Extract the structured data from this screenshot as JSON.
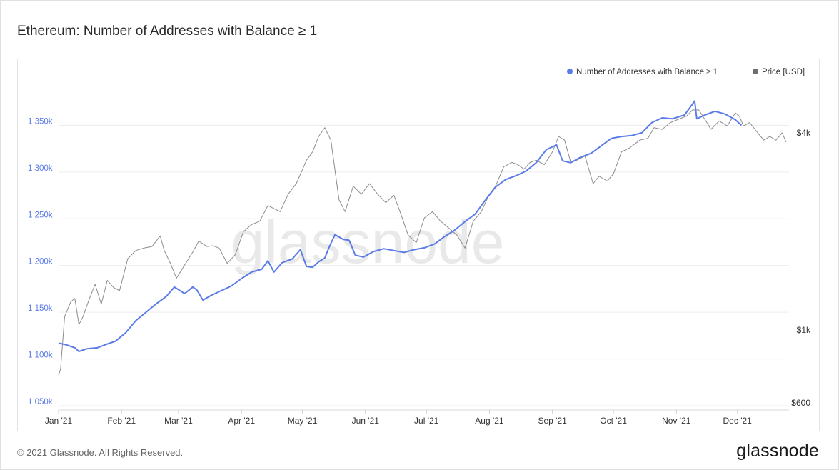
{
  "title": "Ethereum: Number of Addresses with Balance ≥ 1",
  "footer": "© 2021 Glassnode. All Rights Reserved.",
  "logo": "glassnode",
  "watermark": "glassnode",
  "colors": {
    "addresses": "#5b7be9",
    "price": "#8c8c8c",
    "left_axis": "#5b7be9",
    "right_axis": "#333333",
    "grid": "#ececec"
  },
  "chart_data": {
    "type": "line",
    "legend_position": "top-right",
    "grid": true,
    "x_ticks": [
      "Jan '21",
      "Feb '21",
      "Mar '21",
      "Apr '21",
      "May '21",
      "Jun '21",
      "Jul '21",
      "Aug '21",
      "Sep '21",
      "Oct '21",
      "Nov '21",
      "Dec '21"
    ],
    "x_range": [
      "2021-01-01",
      "2021-12-25"
    ],
    "y_left": {
      "ticks": [
        "1 050k",
        "1 100k",
        "1 150k",
        "1 200k",
        "1 250k",
        "1 300k",
        "1 350k"
      ],
      "range": [
        1050000,
        1400000
      ]
    },
    "y_right": {
      "scale": "log",
      "ticks": [
        "$600",
        "$1k",
        "$4k"
      ],
      "tick_values": [
        600,
        1000,
        4000
      ]
    },
    "series": [
      {
        "name": "Number of Addresses with Balance ≥ 1",
        "axis": "left",
        "points": [
          [
            "2021-01-01",
            1117000
          ],
          [
            "2021-01-05",
            1115000
          ],
          [
            "2021-01-09",
            1112000
          ],
          [
            "2021-01-11",
            1108000
          ],
          [
            "2021-01-15",
            1111000
          ],
          [
            "2021-01-20",
            1112000
          ],
          [
            "2021-01-25",
            1116000
          ],
          [
            "2021-01-29",
            1119000
          ],
          [
            "2021-02-03",
            1128000
          ],
          [
            "2021-02-08",
            1141000
          ],
          [
            "2021-02-13",
            1150000
          ],
          [
            "2021-02-18",
            1159000
          ],
          [
            "2021-02-23",
            1167000
          ],
          [
            "2021-02-27",
            1177000
          ],
          [
            "2021-03-04",
            1170000
          ],
          [
            "2021-03-08",
            1177000
          ],
          [
            "2021-03-10",
            1174000
          ],
          [
            "2021-03-13",
            1163000
          ],
          [
            "2021-03-17",
            1168000
          ],
          [
            "2021-03-22",
            1173000
          ],
          [
            "2021-03-27",
            1178000
          ],
          [
            "2021-04-01",
            1186000
          ],
          [
            "2021-04-06",
            1193000
          ],
          [
            "2021-04-11",
            1196000
          ],
          [
            "2021-04-14",
            1205000
          ],
          [
            "2021-04-17",
            1193000
          ],
          [
            "2021-04-21",
            1203000
          ],
          [
            "2021-04-26",
            1207000
          ],
          [
            "2021-04-30",
            1217000
          ],
          [
            "2021-05-03",
            1199000
          ],
          [
            "2021-05-06",
            1198000
          ],
          [
            "2021-05-09",
            1204000
          ],
          [
            "2021-05-12",
            1208000
          ],
          [
            "2021-05-14",
            1219000
          ],
          [
            "2021-05-17",
            1233000
          ],
          [
            "2021-05-21",
            1228000
          ],
          [
            "2021-05-24",
            1227000
          ],
          [
            "2021-05-27",
            1211000
          ],
          [
            "2021-05-31",
            1209000
          ],
          [
            "2021-06-05",
            1215000
          ],
          [
            "2021-06-10",
            1218000
          ],
          [
            "2021-06-15",
            1216000
          ],
          [
            "2021-06-20",
            1214000
          ],
          [
            "2021-06-25",
            1217000
          ],
          [
            "2021-06-30",
            1219000
          ],
          [
            "2021-07-05",
            1223000
          ],
          [
            "2021-07-10",
            1231000
          ],
          [
            "2021-07-15",
            1238000
          ],
          [
            "2021-07-20",
            1247000
          ],
          [
            "2021-07-25",
            1255000
          ],
          [
            "2021-07-30",
            1270000
          ],
          [
            "2021-08-04",
            1284000
          ],
          [
            "2021-08-09",
            1292000
          ],
          [
            "2021-08-14",
            1296000
          ],
          [
            "2021-08-19",
            1301000
          ],
          [
            "2021-08-24",
            1310000
          ],
          [
            "2021-08-29",
            1324000
          ],
          [
            "2021-09-03",
            1329000
          ],
          [
            "2021-09-06",
            1312000
          ],
          [
            "2021-09-10",
            1310000
          ],
          [
            "2021-09-15",
            1316000
          ],
          [
            "2021-09-20",
            1320000
          ],
          [
            "2021-09-25",
            1328000
          ],
          [
            "2021-09-30",
            1336000
          ],
          [
            "2021-10-05",
            1338000
          ],
          [
            "2021-10-10",
            1339000
          ],
          [
            "2021-10-15",
            1342000
          ],
          [
            "2021-10-20",
            1353000
          ],
          [
            "2021-10-25",
            1358000
          ],
          [
            "2021-10-30",
            1357000
          ],
          [
            "2021-11-05",
            1361000
          ],
          [
            "2021-11-10",
            1376000
          ],
          [
            "2021-11-11",
            1357000
          ],
          [
            "2021-11-15",
            1361000
          ],
          [
            "2021-11-20",
            1365000
          ],
          [
            "2021-11-25",
            1362000
          ],
          [
            "2021-11-30",
            1356000
          ],
          [
            "2021-12-03",
            1350000
          ]
        ]
      },
      {
        "name": "Price [USD]",
        "axis": "right",
        "points": [
          [
            "2021-01-01",
            730
          ],
          [
            "2021-01-02",
            760
          ],
          [
            "2021-01-04",
            1100
          ],
          [
            "2021-01-07",
            1220
          ],
          [
            "2021-01-09",
            1250
          ],
          [
            "2021-01-11",
            1040
          ],
          [
            "2021-01-13",
            1100
          ],
          [
            "2021-01-16",
            1240
          ],
          [
            "2021-01-19",
            1380
          ],
          [
            "2021-01-22",
            1200
          ],
          [
            "2021-01-25",
            1420
          ],
          [
            "2021-01-28",
            1350
          ],
          [
            "2021-01-31",
            1320
          ],
          [
            "2021-02-04",
            1650
          ],
          [
            "2021-02-08",
            1750
          ],
          [
            "2021-02-12",
            1780
          ],
          [
            "2021-02-16",
            1800
          ],
          [
            "2021-02-20",
            1940
          ],
          [
            "2021-02-22",
            1750
          ],
          [
            "2021-02-25",
            1600
          ],
          [
            "2021-02-28",
            1440
          ],
          [
            "2021-03-04",
            1580
          ],
          [
            "2021-03-08",
            1730
          ],
          [
            "2021-03-11",
            1870
          ],
          [
            "2021-03-15",
            1800
          ],
          [
            "2021-03-18",
            1810
          ],
          [
            "2021-03-21",
            1780
          ],
          [
            "2021-03-25",
            1600
          ],
          [
            "2021-03-29",
            1700
          ],
          [
            "2021-04-02",
            2000
          ],
          [
            "2021-04-06",
            2100
          ],
          [
            "2021-04-10",
            2150
          ],
          [
            "2021-04-14",
            2400
          ],
          [
            "2021-04-17",
            2350
          ],
          [
            "2021-04-20",
            2300
          ],
          [
            "2021-04-24",
            2600
          ],
          [
            "2021-04-28",
            2800
          ],
          [
            "2021-05-03",
            3300
          ],
          [
            "2021-05-06",
            3500
          ],
          [
            "2021-05-09",
            3900
          ],
          [
            "2021-05-12",
            4150
          ],
          [
            "2021-05-15",
            3800
          ],
          [
            "2021-05-19",
            2500
          ],
          [
            "2021-05-22",
            2300
          ],
          [
            "2021-05-26",
            2750
          ],
          [
            "2021-05-30",
            2600
          ],
          [
            "2021-06-03",
            2800
          ],
          [
            "2021-06-07",
            2600
          ],
          [
            "2021-06-11",
            2450
          ],
          [
            "2021-06-15",
            2580
          ],
          [
            "2021-06-18",
            2300
          ],
          [
            "2021-06-22",
            1950
          ],
          [
            "2021-06-26",
            1850
          ],
          [
            "2021-06-30",
            2200
          ],
          [
            "2021-07-04",
            2300
          ],
          [
            "2021-07-08",
            2150
          ],
          [
            "2021-07-12",
            2050
          ],
          [
            "2021-07-16",
            1950
          ],
          [
            "2021-07-20",
            1780
          ],
          [
            "2021-07-24",
            2150
          ],
          [
            "2021-07-28",
            2300
          ],
          [
            "2021-08-01",
            2600
          ],
          [
            "2021-08-04",
            2750
          ],
          [
            "2021-08-08",
            3150
          ],
          [
            "2021-08-12",
            3250
          ],
          [
            "2021-08-15",
            3200
          ],
          [
            "2021-08-18",
            3100
          ],
          [
            "2021-08-21",
            3250
          ],
          [
            "2021-08-24",
            3300
          ],
          [
            "2021-08-28",
            3200
          ],
          [
            "2021-09-01",
            3500
          ],
          [
            "2021-09-04",
            3900
          ],
          [
            "2021-09-07",
            3800
          ],
          [
            "2021-09-10",
            3250
          ],
          [
            "2021-09-13",
            3300
          ],
          [
            "2021-09-17",
            3400
          ],
          [
            "2021-09-21",
            2800
          ],
          [
            "2021-09-24",
            2950
          ],
          [
            "2021-09-28",
            2850
          ],
          [
            "2021-10-01",
            3000
          ],
          [
            "2021-10-05",
            3500
          ],
          [
            "2021-10-09",
            3600
          ],
          [
            "2021-10-14",
            3800
          ],
          [
            "2021-10-18",
            3850
          ],
          [
            "2021-10-21",
            4150
          ],
          [
            "2021-10-25",
            4100
          ],
          [
            "2021-10-29",
            4300
          ],
          [
            "2021-11-02",
            4400
          ],
          [
            "2021-11-06",
            4500
          ],
          [
            "2021-11-09",
            4700
          ],
          [
            "2021-11-12",
            4700
          ],
          [
            "2021-11-16",
            4300
          ],
          [
            "2021-11-18",
            4100
          ],
          [
            "2021-11-22",
            4350
          ],
          [
            "2021-11-26",
            4200
          ],
          [
            "2021-11-30",
            4600
          ],
          [
            "2021-12-02",
            4500
          ],
          [
            "2021-12-04",
            4200
          ],
          [
            "2021-12-07",
            4300
          ],
          [
            "2021-12-11",
            4000
          ],
          [
            "2021-12-14",
            3800
          ],
          [
            "2021-12-17",
            3900
          ],
          [
            "2021-12-20",
            3800
          ],
          [
            "2021-12-23",
            4000
          ],
          [
            "2021-12-25",
            3750
          ]
        ]
      }
    ]
  }
}
